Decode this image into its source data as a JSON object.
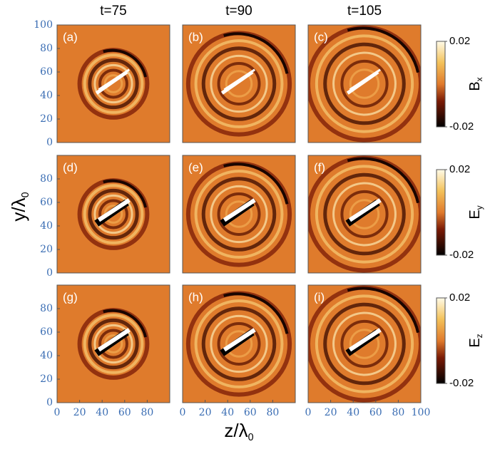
{
  "figure": {
    "column_titles": [
      "t=75",
      "t=90",
      "t=105"
    ],
    "y_label": {
      "text": "y/λ",
      "subscript": "0"
    },
    "x_label": {
      "text": "z/λ",
      "subscript": "0"
    },
    "xlim": [
      0,
      100
    ],
    "ylim": [
      0,
      100
    ],
    "panels": [
      {
        "label": "(a)",
        "yticks": [
          0,
          20,
          40,
          60,
          80,
          100
        ]
      },
      {
        "label": "(b)"
      },
      {
        "label": "(c)"
      },
      {
        "label": "(d)",
        "yticks": [
          0,
          20,
          40,
          60,
          80
        ]
      },
      {
        "label": "(e)"
      },
      {
        "label": "(f)"
      },
      {
        "label": "(g)",
        "yticks": [
          0,
          20,
          40,
          60,
          80
        ],
        "xticks": [
          0,
          20,
          40,
          60,
          80
        ]
      },
      {
        "label": "(h)",
        "xticks": [
          0,
          20,
          40,
          60,
          80
        ]
      },
      {
        "label": "(i)",
        "xticks": [
          0,
          20,
          40,
          60,
          80,
          100
        ]
      }
    ],
    "colorbars": [
      {
        "label": "B",
        "subscript": "x",
        "lim": [
          -0.02,
          0.02
        ],
        "ticks": [
          -0.02,
          0.02
        ]
      },
      {
        "label": "E",
        "subscript": "y",
        "lim": [
          -0.02,
          0.02
        ],
        "ticks": [
          -0.02,
          0.02
        ]
      },
      {
        "label": "E",
        "subscript": "z",
        "lim": [
          -0.02,
          0.02
        ],
        "ticks": [
          -0.02,
          0.02
        ]
      }
    ]
  }
}
